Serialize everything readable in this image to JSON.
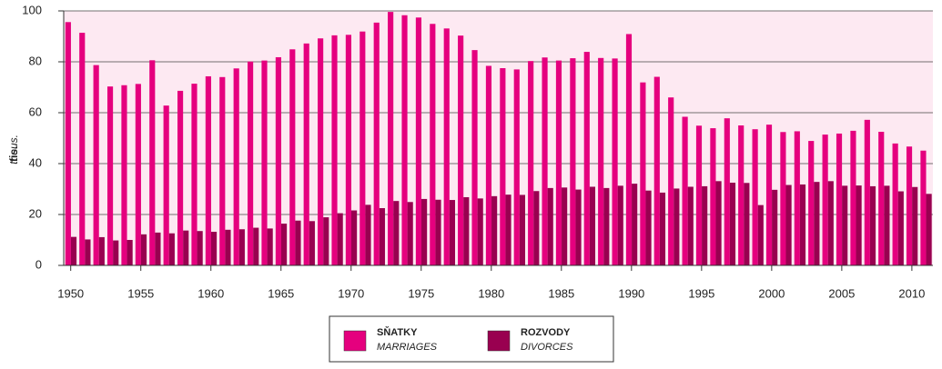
{
  "chart_data": {
    "type": "bar",
    "ylabel": "tis.",
    "ylabel_en": "thous.",
    "x": [
      1950,
      1951,
      1952,
      1953,
      1954,
      1955,
      1956,
      1957,
      1958,
      1959,
      1960,
      1961,
      1962,
      1963,
      1964,
      1965,
      1966,
      1967,
      1968,
      1969,
      1970,
      1971,
      1972,
      1973,
      1974,
      1975,
      1976,
      1977,
      1978,
      1979,
      1980,
      1981,
      1982,
      1983,
      1984,
      1985,
      1986,
      1987,
      1988,
      1989,
      1990,
      1991,
      1992,
      1993,
      1994,
      1995,
      1996,
      1997,
      1998,
      1999,
      2000,
      2001,
      2002,
      2003,
      2004,
      2005,
      2006,
      2007,
      2008,
      2009,
      2010,
      2011
    ],
    "series": [
      {
        "name": "SŇATKY",
        "name_en": "MARRIAGES",
        "color": "#e5007e",
        "values": [
          95.6,
          91.4,
          78.7,
          70.3,
          70.8,
          71.3,
          80.6,
          62.8,
          68.6,
          71.4,
          74.3,
          74.0,
          77.4,
          80.1,
          80.5,
          81.8,
          84.9,
          87.2,
          89.2,
          90.4,
          90.6,
          91.9,
          95.4,
          99.6,
          98.3,
          97.4,
          94.9,
          93.1,
          90.3,
          84.6,
          78.4,
          77.5,
          77.0,
          80.3,
          81.7,
          80.5,
          81.4,
          83.9,
          81.5,
          81.3,
          90.9,
          71.9,
          74.1,
          66.0,
          58.4,
          54.9,
          53.9,
          57.8,
          55.0,
          53.5,
          55.3,
          52.4,
          52.7,
          48.9,
          51.4,
          51.8,
          52.9,
          57.2,
          52.5,
          47.9,
          46.7,
          45.1
        ]
      },
      {
        "name": "ROZVODY",
        "name_en": "DIVORCES",
        "color": "#990050",
        "values": [
          11.2,
          10.2,
          11.1,
          9.8,
          10.0,
          12.2,
          12.9,
          12.6,
          13.7,
          13.5,
          13.2,
          14.0,
          14.2,
          14.8,
          14.5,
          16.4,
          17.6,
          17.4,
          18.9,
          20.5,
          21.6,
          23.8,
          22.5,
          25.3,
          24.9,
          26.1,
          25.8,
          25.7,
          26.8,
          26.3,
          27.2,
          27.8,
          27.7,
          29.2,
          30.4,
          30.6,
          29.8,
          30.9,
          30.4,
          31.3,
          32.1,
          29.4,
          28.6,
          30.2,
          30.9,
          31.1,
          33.1,
          32.5,
          32.4,
          23.7,
          29.7,
          31.6,
          31.8,
          32.8,
          33.1,
          31.3,
          31.4,
          31.1,
          31.3,
          29.1,
          30.8,
          28.1
        ]
      }
    ],
    "xlim": [
      1949.5,
      2011.5
    ],
    "xticks": [
      1950,
      1955,
      1960,
      1965,
      1970,
      1975,
      1980,
      1985,
      1990,
      1995,
      2000,
      2005,
      2010
    ],
    "ylim": [
      0,
      100
    ],
    "yticks": [
      0,
      20,
      40,
      60,
      80,
      100
    ],
    "grid": true,
    "background": "#fde9f2"
  }
}
